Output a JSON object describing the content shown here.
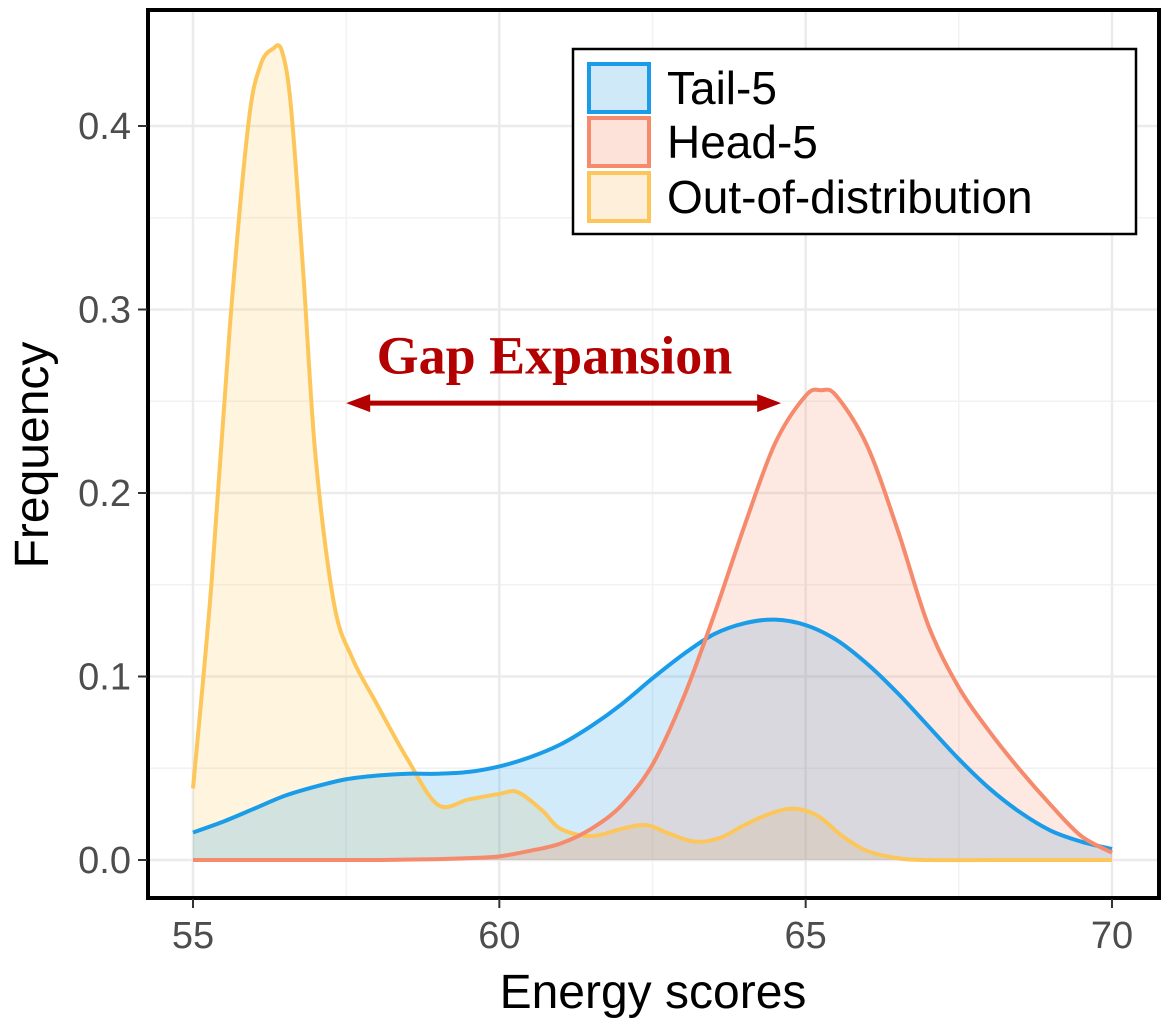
{
  "chart_data": {
    "type": "area",
    "xlabel": "Energy scores",
    "ylabel": "Frequency",
    "xlim": [
      55,
      70
    ],
    "ylim": [
      0,
      0.45
    ],
    "x_ticks": [
      55,
      60,
      65,
      70
    ],
    "x_tick_labels": [
      "55",
      "60",
      "65",
      "70"
    ],
    "y_ticks": [
      0.0,
      0.1,
      0.2,
      0.3,
      0.4
    ],
    "y_tick_labels": [
      "0.0",
      "0.1",
      "0.2",
      "0.3",
      "0.4"
    ],
    "grid": true,
    "legend_position": "top-right",
    "series": [
      {
        "name": "Tail-5",
        "color": "#1b9ce8",
        "fill": "#cfe9f8",
        "x": [
          55,
          55.5,
          56,
          56.5,
          57,
          57.5,
          58,
          58.5,
          59,
          59.5,
          60,
          60.5,
          61,
          61.5,
          62,
          62.5,
          63,
          63.5,
          64,
          64.5,
          65,
          65.5,
          66,
          66.5,
          67,
          67.5,
          68,
          68.5,
          69,
          69.5,
          70
        ],
        "y": [
          0.015,
          0.021,
          0.028,
          0.035,
          0.04,
          0.044,
          0.046,
          0.047,
          0.047,
          0.048,
          0.051,
          0.056,
          0.063,
          0.073,
          0.085,
          0.099,
          0.112,
          0.123,
          0.129,
          0.131,
          0.128,
          0.12,
          0.107,
          0.091,
          0.073,
          0.055,
          0.039,
          0.026,
          0.016,
          0.01,
          0.006
        ]
      },
      {
        "name": "Head-5",
        "color": "#f58b6c",
        "fill": "#fde2da",
        "x": [
          55,
          56,
          57,
          58,
          59,
          59.5,
          60,
          60.5,
          61,
          61.5,
          62,
          62.5,
          63,
          63.5,
          64,
          64.5,
          65,
          65.25,
          65.5,
          66,
          66.5,
          67,
          67.5,
          68,
          68.5,
          69,
          69.5,
          70
        ],
        "y": [
          0.0,
          0.0,
          0.0,
          0.0,
          0.0005,
          0.001,
          0.002,
          0.005,
          0.009,
          0.017,
          0.03,
          0.052,
          0.088,
          0.133,
          0.182,
          0.227,
          0.253,
          0.256,
          0.253,
          0.226,
          0.18,
          0.128,
          0.094,
          0.07,
          0.049,
          0.03,
          0.013,
          0.004
        ]
      },
      {
        "name": "Out-of-distribution",
        "color": "#fdc65a",
        "fill": "#fdefd9",
        "x": [
          55,
          55.3,
          55.6,
          55.9,
          56.1,
          56.3,
          56.45,
          56.6,
          56.8,
          57.0,
          57.3,
          57.6,
          58.0,
          58.5,
          59.0,
          59.5,
          60.0,
          60.3,
          60.7,
          61.0,
          61.5,
          62.0,
          62.4,
          62.8,
          63.2,
          63.6,
          64.0,
          64.4,
          64.8,
          65.2,
          65.6,
          66.0,
          66.5,
          67.0,
          68.0,
          69.0,
          70.0
        ],
        "y": [
          0.039,
          0.15,
          0.29,
          0.4,
          0.433,
          0.442,
          0.441,
          0.41,
          0.32,
          0.22,
          0.14,
          0.11,
          0.085,
          0.055,
          0.03,
          0.033,
          0.036,
          0.037,
          0.027,
          0.017,
          0.013,
          0.017,
          0.019,
          0.014,
          0.01,
          0.012,
          0.019,
          0.025,
          0.028,
          0.024,
          0.013,
          0.005,
          0.001,
          0.0,
          0.0,
          0.0,
          0.0
        ]
      }
    ],
    "annotations": [
      {
        "text": "Gap Expansion",
        "color": "#b30000",
        "arrow_from_x": 57.5,
        "arrow_to_x": 64.6,
        "arrow_y": 0.249,
        "text_x": 60.9,
        "text_y": 0.277
      }
    ]
  }
}
